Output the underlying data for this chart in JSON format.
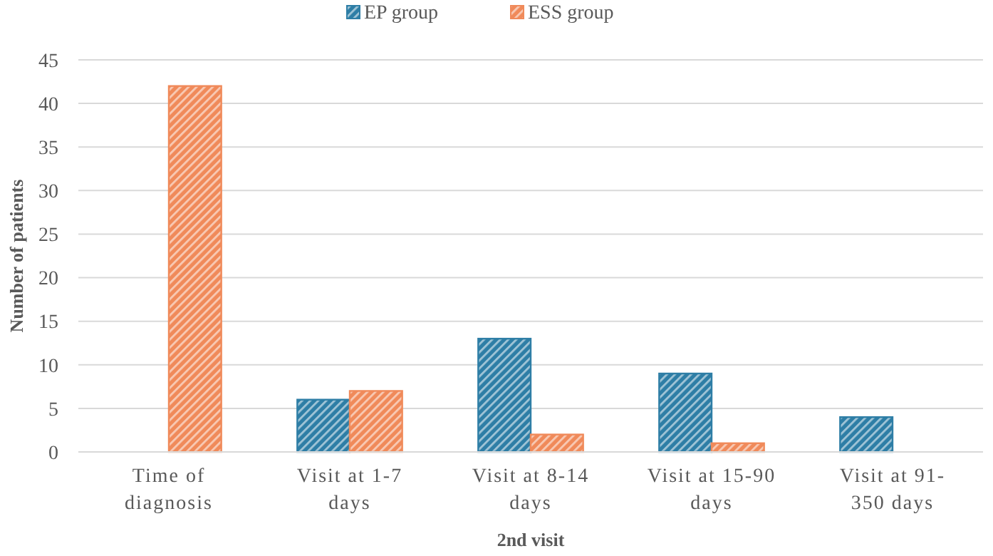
{
  "chart_data": {
    "type": "bar",
    "xlabel": "2nd visit",
    "ylabel": "Number of patients",
    "categories": [
      "Time of diagnosis",
      "Visit at 1-7 days",
      "Visit at 8-14 days",
      "Visit at 15-90 days",
      "Visit at 91-350 days"
    ],
    "series": [
      {
        "name": "EP group",
        "color": "#2e7ea6",
        "values": [
          0,
          6,
          13,
          9,
          4
        ]
      },
      {
        "name": "ESS group",
        "color": "#f08a5a",
        "values": [
          42,
          7,
          2,
          1,
          0
        ]
      }
    ],
    "ylim": [
      0,
      45
    ],
    "yticks": [
      0,
      5,
      10,
      15,
      20,
      25,
      30,
      35,
      40,
      45
    ],
    "grid": "y",
    "legend": "top"
  }
}
